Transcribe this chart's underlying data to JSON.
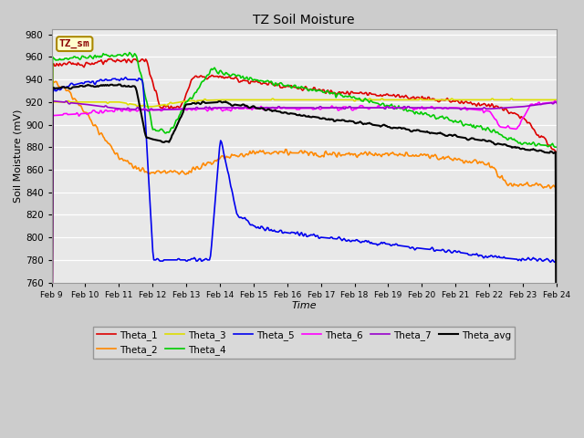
{
  "title": "TZ Soil Moisture",
  "xlabel": "Time",
  "ylabel": "Soil Moisture (mV)",
  "ylim": [
    760,
    985
  ],
  "yticks": [
    760,
    780,
    800,
    820,
    840,
    860,
    880,
    900,
    920,
    940,
    960,
    980
  ],
  "fig_bg": "#cccccc",
  "plot_bg": "#e8e8e8",
  "legend_label": "TZ_sm",
  "grid_color": "#ffffff",
  "series": {
    "Theta_1": {
      "color": "#dd0000",
      "lw": 1.2
    },
    "Theta_2": {
      "color": "#ff8800",
      "lw": 1.2
    },
    "Theta_3": {
      "color": "#dddd00",
      "lw": 1.2
    },
    "Theta_4": {
      "color": "#00cc00",
      "lw": 1.2
    },
    "Theta_5": {
      "color": "#0000ee",
      "lw": 1.2
    },
    "Theta_6": {
      "color": "#ff00ff",
      "lw": 1.2
    },
    "Theta_7": {
      "color": "#9900cc",
      "lw": 1.2
    },
    "Theta_avg": {
      "color": "#000000",
      "lw": 1.5
    }
  },
  "legend_order": [
    "Theta_1",
    "Theta_2",
    "Theta_3",
    "Theta_4",
    "Theta_5",
    "Theta_6",
    "Theta_7",
    "Theta_avg"
  ]
}
